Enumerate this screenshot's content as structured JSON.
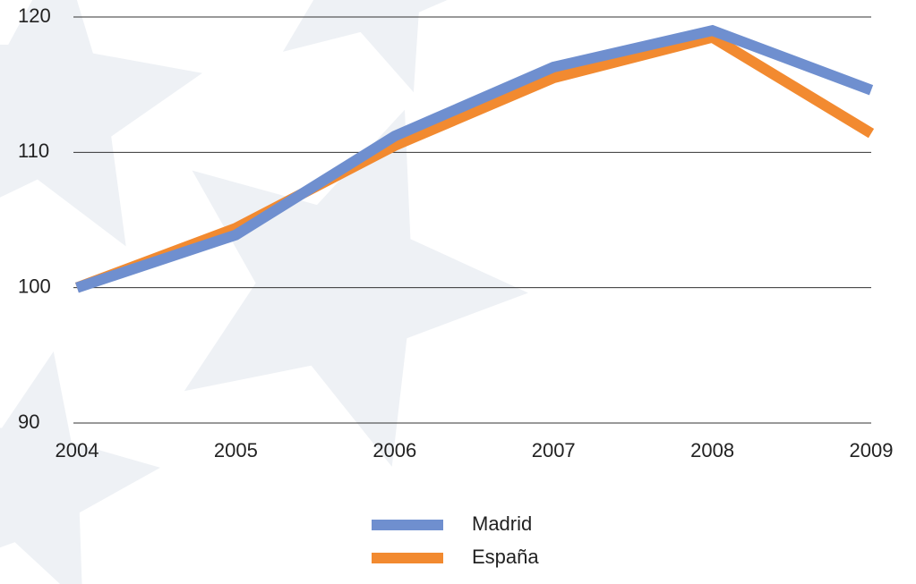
{
  "chart_data": {
    "type": "line",
    "categories": [
      "2004",
      "2005",
      "2006",
      "2007",
      "2008",
      "2009"
    ],
    "series": [
      {
        "name": "Madrid",
        "color": "#6f8fcf",
        "values": [
          100,
          103.9,
          111.2,
          116.3,
          119.0,
          114.6
        ]
      },
      {
        "name": "España",
        "color": "#f28a30",
        "values": [
          100,
          104.4,
          110.5,
          115.5,
          118.5,
          111.4
        ]
      }
    ],
    "ylim": [
      90,
      120
    ],
    "yticks": [
      90,
      100,
      110,
      120
    ],
    "grid": true,
    "legend": "bottom"
  }
}
